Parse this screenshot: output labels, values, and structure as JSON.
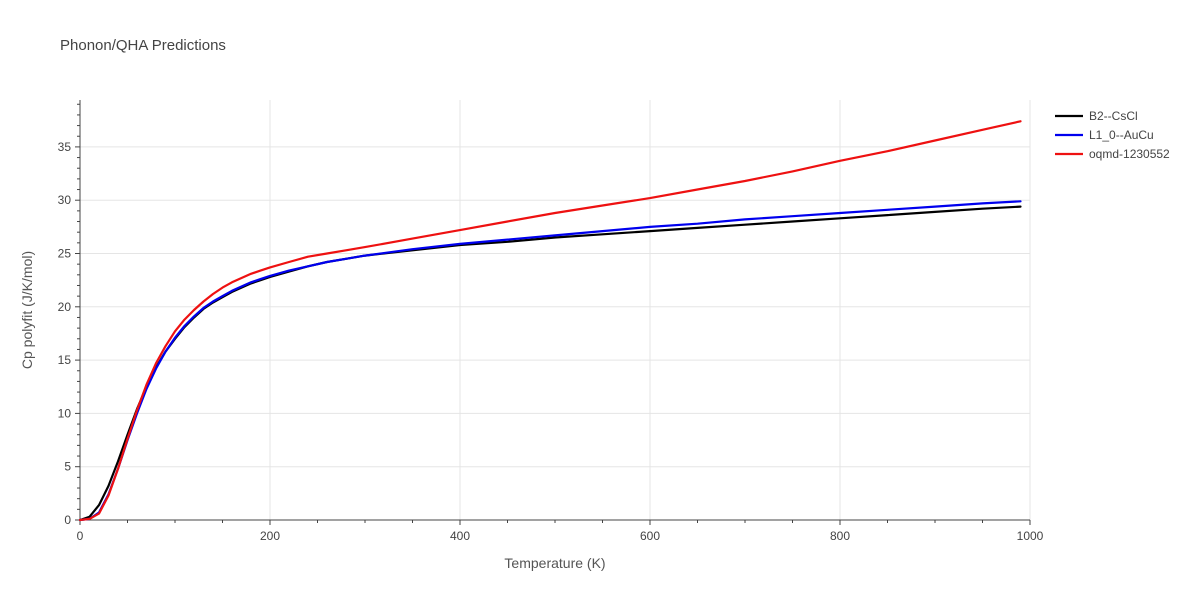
{
  "chart_data": {
    "type": "line",
    "title": "Phonon/QHA Predictions",
    "xlabel": "Temperature (K)",
    "ylabel": "Cp polyfit (J/K/mol)",
    "xlim": [
      0,
      1000
    ],
    "ylim": [
      0,
      39.4
    ],
    "xticks": [
      0,
      200,
      400,
      600,
      800,
      1000
    ],
    "xtick_labels": [
      "0",
      "200",
      "400",
      "600",
      "800",
      "1000"
    ],
    "yticks": [
      0,
      5,
      10,
      15,
      20,
      25,
      30,
      35
    ],
    "ytick_labels": [
      "0",
      "5",
      "10",
      "15",
      "20",
      "25",
      "30",
      "35"
    ],
    "grid": true,
    "legend_position": "top-right",
    "series": [
      {
        "name": "B2--CsCl",
        "color": "#000000",
        "x": [
          0,
          10,
          20,
          30,
          40,
          50,
          60,
          70,
          80,
          90,
          100,
          110,
          120,
          130,
          140,
          150,
          160,
          170,
          180,
          190,
          200,
          220,
          240,
          260,
          280,
          300,
          350,
          400,
          450,
          500,
          550,
          600,
          650,
          700,
          750,
          800,
          850,
          900,
          950,
          990
        ],
        "y": [
          0,
          0.3,
          1.4,
          3.2,
          5.5,
          8.0,
          10.4,
          12.5,
          14.3,
          15.8,
          17.0,
          18.1,
          19.0,
          19.8,
          20.4,
          20.9,
          21.4,
          21.8,
          22.2,
          22.5,
          22.8,
          23.3,
          23.8,
          24.2,
          24.5,
          24.8,
          25.3,
          25.8,
          26.1,
          26.5,
          26.8,
          27.1,
          27.4,
          27.7,
          28.0,
          28.3,
          28.6,
          28.9,
          29.2,
          29.4
        ]
      },
      {
        "name": "L1_0--AuCu",
        "color": "#0000ee",
        "x": [
          0,
          10,
          20,
          30,
          40,
          50,
          60,
          70,
          80,
          90,
          100,
          110,
          120,
          130,
          140,
          150,
          160,
          170,
          180,
          190,
          200,
          220,
          240,
          260,
          280,
          300,
          350,
          400,
          450,
          500,
          550,
          600,
          650,
          700,
          750,
          800,
          850,
          900,
          950,
          990
        ],
        "y": [
          0,
          0.1,
          0.7,
          2.4,
          4.8,
          7.5,
          10.0,
          12.3,
          14.2,
          15.8,
          17.1,
          18.2,
          19.1,
          19.9,
          20.5,
          21.0,
          21.5,
          21.9,
          22.3,
          22.6,
          22.9,
          23.4,
          23.8,
          24.2,
          24.5,
          24.8,
          25.4,
          25.9,
          26.3,
          26.7,
          27.1,
          27.5,
          27.8,
          28.2,
          28.5,
          28.8,
          29.1,
          29.4,
          29.7,
          29.9
        ]
      },
      {
        "name": "oqmd-1230552",
        "color": "#ee1111",
        "x": [
          0,
          10,
          20,
          30,
          40,
          50,
          60,
          70,
          80,
          90,
          100,
          110,
          120,
          130,
          140,
          150,
          160,
          170,
          180,
          190,
          200,
          220,
          240,
          260,
          280,
          300,
          350,
          400,
          450,
          500,
          550,
          600,
          650,
          700,
          750,
          800,
          850,
          900,
          950,
          990
        ],
        "y": [
          0,
          0.1,
          0.6,
          2.3,
          4.8,
          7.6,
          10.3,
          12.7,
          14.7,
          16.3,
          17.7,
          18.8,
          19.7,
          20.5,
          21.2,
          21.8,
          22.3,
          22.7,
          23.1,
          23.4,
          23.7,
          24.2,
          24.7,
          25.0,
          25.3,
          25.6,
          26.4,
          27.2,
          28.0,
          28.8,
          29.5,
          30.2,
          31.0,
          31.8,
          32.7,
          33.7,
          34.6,
          35.6,
          36.6,
          37.4
        ]
      }
    ]
  }
}
